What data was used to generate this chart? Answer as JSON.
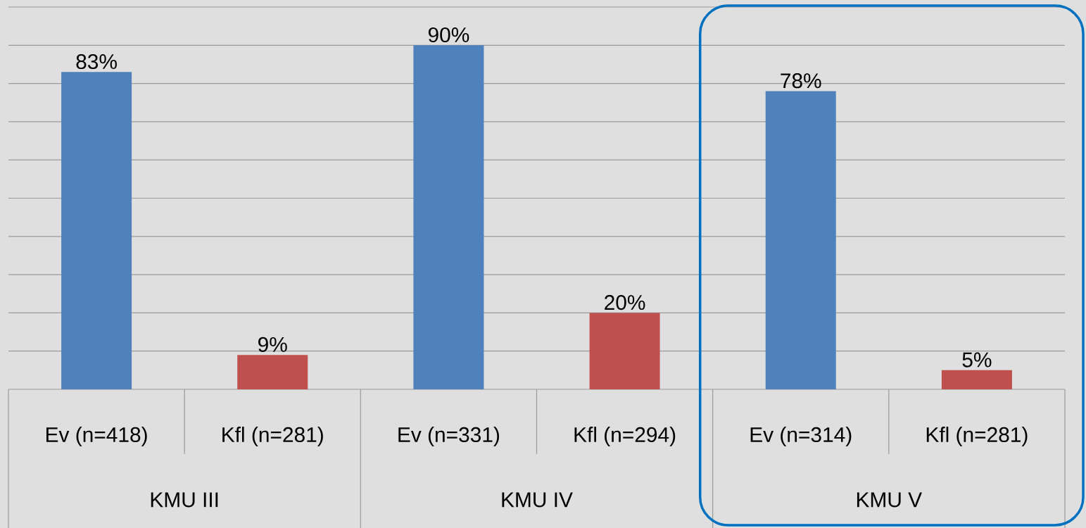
{
  "chart_data": {
    "type": "bar",
    "categories": [
      "Ev (n=418)",
      "Kfl (n=281)",
      "Ev (n=331)",
      "Kfl (n=294)",
      "Ev (n=314)",
      "Kfl (n=281)"
    ],
    "values": [
      83,
      9,
      90,
      20,
      78,
      5
    ],
    "colors": [
      "#4f81bd",
      "#c0504d",
      "#4f81bd",
      "#c0504d",
      "#4f81bd",
      "#c0504d"
    ],
    "value_labels": [
      "83%",
      "9%",
      "90%",
      "20%",
      "78%",
      "5%"
    ],
    "annotations": [
      "KMU III",
      "KMU IV",
      "KMU V"
    ],
    "ylim": [
      0,
      100
    ],
    "yticks": [
      {
        "value": 0,
        "label": null
      },
      {
        "value": 10,
        "label": null
      },
      {
        "value": 20,
        "label": null
      },
      {
        "value": 30,
        "label": null
      },
      {
        "value": 40,
        "label": null
      },
      {
        "value": 50,
        "label": null
      },
      {
        "value": 60,
        "label": null
      },
      {
        "value": 70,
        "label": null
      },
      {
        "value": 80,
        "label": null
      },
      {
        "value": 90,
        "label": null
      },
      {
        "value": 100,
        "label": null
      }
    ],
    "tick_labels": "x",
    "grid": "y"
  }
}
